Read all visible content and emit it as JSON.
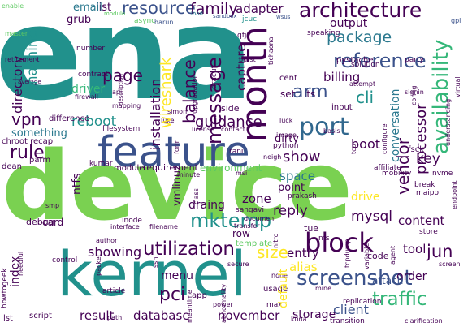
{
  "colors": {
    "background": "#ffffff",
    "palette": [
      "#440154",
      "#3b528b",
      "#21918c",
      "#5ec962",
      "#fde725",
      "#2a788e",
      "#7ad151",
      "#31688e",
      "#35b779"
    ]
  },
  "words": {
    "ena": "ena",
    "device": "device",
    "kernel": "kernel",
    "feature": "feature",
    "month": "month",
    "architecture": "architecture",
    "block": "block",
    "port": "port",
    "screenshot": "screenshot",
    "utilization": "utilization",
    "resource": "resource",
    "family": "family",
    "adapter": "adapter",
    "reference": "reference",
    "package": "package",
    "output": "output",
    "availability": "availability",
    "message": "message",
    "billing": "billing",
    "arm": "arm",
    "cli": "cli",
    "vendor": "vendor",
    "processor": "processor",
    "conversation": "conversation",
    "show": "show",
    "boot": "boot",
    "key": "key",
    "mysql": "mysql",
    "traffic": "traffic",
    "client": "client",
    "jun": "jun",
    "tool": "tool",
    "content": "content",
    "drive": "drive",
    "reply": "reply",
    "alias": "alias",
    "entry": "entry",
    "size": "size",
    "mktemp": "mktemp",
    "draing": "draing",
    "zone": "zone",
    "pci": "pci",
    "menu": "menu",
    "showing": "showing",
    "result": "result",
    "database": "database",
    "november": "november",
    "storage": "storage",
    "order": "order",
    "attach": "attach",
    "code": "code",
    "point": "point",
    "space": "space",
    "dirty": "dirty",
    "guidance": "guidance",
    "balance": "balance",
    "installation": "installation",
    "wireshark": "wireshark",
    "page": "page",
    "reboot": "reboot",
    "driver": "driver",
    "vpn": "vpn",
    "rule": "rule",
    "machine": "machine",
    "directory": "directory",
    "grub": "grub",
    "email": "email",
    "list": "list",
    "capture": "capture",
    "lts": "lts",
    "set": "set",
    "cent": "cent",
    "something": "something",
    "index": "index",
    "card": "card",
    "difference": "difference",
    "requirement": "requirement",
    "environment": "environment",
    "module": "module",
    "ntfs": "ntfs",
    "vmlinuz": "vmlinuz",
    "python": "python",
    "input": "input",
    "side": "side",
    "default": "default",
    "row": "row",
    "template": "template",
    "usage": "usage",
    "mine": "mine",
    "script": "script",
    "lst": "lst",
    "tue": "tue",
    "nfs": "nfs",
    "sangavi": "sangavi",
    "prakash": "prakash",
    "inode": "inode",
    "debug": "debug",
    "parm": "parm",
    "dean": "dean",
    "chroot recap": "chroot recap",
    "filesystem": "filesystem",
    "number": "number",
    "contract": "contract",
    "firewall": "firewall",
    "mapping": "mapping",
    "simon": "simon",
    "luck": "luck",
    "solution": "solution",
    "pystache": "pystache",
    "tichaona": "tichaona",
    "burst": "burst",
    "qfj": "qfj",
    "jcuc": "jcuc",
    "speaking": "speaking",
    "sandbox": "sandbox",
    "wsus": "wsus",
    "async": "async",
    "harun": "harun",
    "master": "master",
    "retirement": "retirement",
    "average": "average",
    "enable": "enable",
    "gpl": "gpl",
    "party": "party",
    "attempt": "attempt",
    "config": "config",
    "signin": "signin",
    "basis": "basis",
    "fsck": "fsck",
    "affiliate": "affiliate",
    "mobility": "mobility",
    "nvme": "nvme",
    "break": "break",
    "maipo": "maipo",
    "endpoint": "endpoint",
    "store": "store",
    "agent": "agent",
    "screen": "screen",
    "transition": "transition",
    "clarification": "clarification",
    "replication": "replication",
    "ssh": "ssh",
    "author": "author",
    "article": "article",
    "app": "app",
    "power": "power",
    "path": "path",
    "max": "max",
    "kuna": "kuna",
    "none": "none",
    "howtogeek": "howtogeek",
    "control": "control",
    "packet": "packet",
    "interface": "interface",
    "filename": "filename",
    "transfer": "transfer",
    "nitro": "nitro",
    "documen": "documen",
    "secure": "secure",
    "image": "image",
    "neigh": "neigh",
    "class": "class",
    "minute": "minute",
    "msi": "msi",
    "kumar": "kumar",
    "rani": "rani",
    "form": "form",
    "license": "license",
    "contact": "contact",
    "dracut": "dracut",
    "tcp": "tcp",
    "upgradation": "upgradation",
    "description": "description",
    "api": "api",
    "load": "load",
    "modulo": "modulo",
    "understanding": "understanding",
    "virtual": "virtual",
    "variable": "variable",
    "tcpdump": "tcpdump",
    "needful": "needful",
    "abnormality": "abnormality",
    "meantime": "meantime",
    "smp": "smp",
    "luke": "luke",
    "configure": "configure",
    "ntfs-2": "ntfs"
  }
}
